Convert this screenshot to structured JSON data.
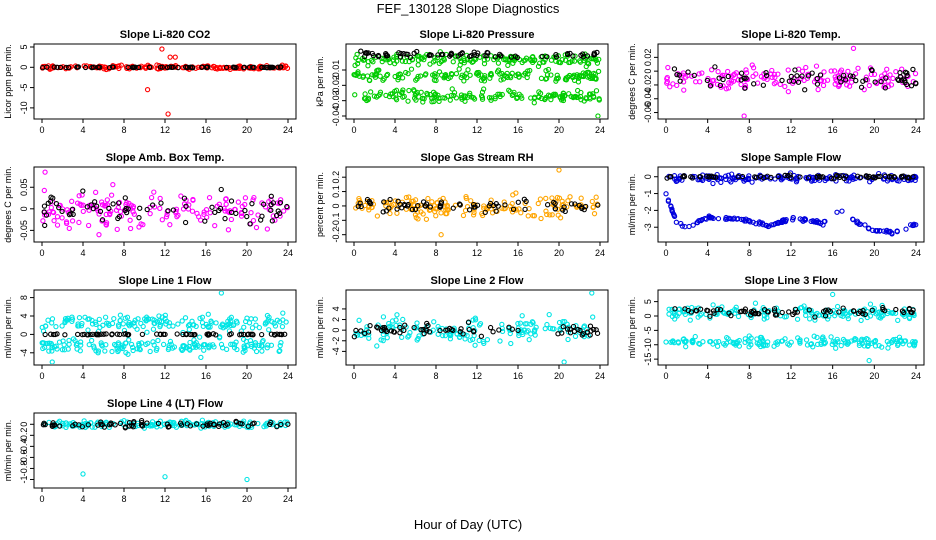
{
  "page": {
    "title": "FEF_130128  Slope Diagnostics",
    "xlabel": "Hour of Day (UTC)"
  },
  "colors": {
    "reference_series": "#000000",
    "axis": "#000000"
  },
  "chart_data": [
    {
      "type": "scatter",
      "title": "Slope Li-820 CO2",
      "ylabel": "Licor ppm per min.",
      "xlim": [
        0,
        24
      ],
      "xticks": [
        0,
        4,
        8,
        12,
        16,
        20,
        24
      ],
      "ylim": [
        -12,
        5
      ],
      "yticks": [
        -10,
        -5,
        0,
        5
      ],
      "color": "#ff0000",
      "series": [
        {
          "name": "all",
          "bands": [
            {
              "center": 0.0,
              "spread": 0.5
            }
          ],
          "outliers": [
            [
              10.3,
              -5.5
            ],
            [
              11.7,
              4.5
            ],
            [
              12.3,
              -11.5
            ],
            [
              12.5,
              2.5
            ],
            [
              13.0,
              2.5
            ]
          ]
        },
        {
          "name": "selected",
          "bands": [
            {
              "center": 0.0,
              "spread": 0.1
            }
          ]
        }
      ]
    },
    {
      "type": "scatter",
      "title": "Slope Li-820 Pressure",
      "ylabel": "kPa per min.",
      "xlim": [
        0,
        24
      ],
      "xticks": [
        0,
        4,
        8,
        12,
        16,
        20,
        24
      ],
      "ylim": [
        -0.04,
        0.005
      ],
      "yticks": [
        -0.04,
        -0.03,
        -0.02,
        -0.01
      ],
      "color": "#00cc00",
      "series": [
        {
          "name": "all",
          "bands": [
            {
              "center": -0.003,
              "spread": 0.004
            },
            {
              "center": -0.014,
              "spread": 0.004
            },
            {
              "center": -0.027,
              "spread": 0.004
            }
          ],
          "outliers": [
            [
              23.8,
              -0.04
            ]
          ]
        },
        {
          "name": "selected",
          "bands": [
            {
              "center": 0.0,
              "spread": 0.002
            }
          ]
        }
      ]
    },
    {
      "type": "scatter",
      "title": "Slope Li-820 Temp.",
      "ylabel": "degrees C per min.",
      "xlim": [
        0,
        24
      ],
      "xticks": [
        0,
        4,
        8,
        12,
        16,
        20,
        24
      ],
      "ylim": [
        -0.065,
        0.035
      ],
      "yticks": [
        -0.06,
        -0.04,
        -0.02,
        0.0,
        0.02
      ],
      "color": "#ff00ff",
      "series": [
        {
          "name": "all",
          "bands": [
            {
              "center": -0.01,
              "spread": 0.018
            }
          ],
          "outliers": [
            [
              7.5,
              -0.065
            ],
            [
              18.0,
              0.033
            ]
          ]
        },
        {
          "name": "selected",
          "bands": [
            {
              "center": -0.01,
              "spread": 0.018
            }
          ]
        }
      ]
    },
    {
      "type": "scatter",
      "title": "Slope Amb. Box Temp.",
      "ylabel": "degrees C per min.",
      "xlim": [
        0,
        24
      ],
      "xticks": [
        0,
        4,
        8,
        12,
        16,
        20,
        24
      ],
      "ylim": [
        -0.07,
        0.09
      ],
      "yticks": [
        -0.05,
        0.0,
        0.05
      ],
      "color": "#ff00ff",
      "series": [
        {
          "name": "all",
          "bands": [
            {
              "center": -0.005,
              "spread": 0.045
            }
          ],
          "outliers": [
            [
              0.3,
              0.085
            ]
          ]
        },
        {
          "name": "selected",
          "bands": [
            {
              "center": 0.0,
              "spread": 0.035
            }
          ]
        }
      ]
    },
    {
      "type": "scatter",
      "title": "Slope Gas Stream RH",
      "ylabel": "percent per min.",
      "xlim": [
        0,
        24
      ],
      "xticks": [
        0,
        4,
        8,
        12,
        16,
        20,
        24
      ],
      "ylim": [
        -0.23,
        0.25
      ],
      "yticks": [
        -0.2,
        -0.1,
        0.0,
        0.1,
        0.2
      ],
      "color": "#ffa500",
      "series": [
        {
          "name": "all",
          "bands": [
            {
              "center": 0.0,
              "spread": 0.08
            }
          ],
          "outliers": [
            [
              20.0,
              0.25
            ],
            [
              8.5,
              -0.2
            ]
          ]
        },
        {
          "name": "selected",
          "bands": [
            {
              "center": 0.0,
              "spread": 0.05
            }
          ]
        }
      ]
    },
    {
      "type": "scatter",
      "title": "Slope Sample Flow",
      "ylabel": "ml/min per min.",
      "xlim": [
        0,
        24
      ],
      "xticks": [
        0,
        4,
        8,
        12,
        16,
        20,
        24
      ],
      "ylim": [
        -3.7,
        0.4
      ],
      "yticks": [
        -3,
        -2,
        -1,
        0
      ],
      "color": "#0000dd",
      "series": [
        {
          "name": "all",
          "bands": [
            {
              "center": -0.1,
              "spread": 0.25
            }
          ],
          "curve": [
            [
              0,
              -1.0
            ],
            [
              1,
              -2.7
            ],
            [
              2,
              -3.0
            ],
            [
              4,
              -2.4
            ],
            [
              6,
              -2.5
            ],
            [
              8,
              -2.6
            ],
            [
              10,
              -2.9
            ],
            [
              12,
              -2.5
            ],
            [
              14,
              -2.6
            ],
            [
              15,
              -2.8
            ],
            [
              17,
              -2.0
            ],
            [
              18,
              -2.6
            ],
            [
              20,
              -3.2
            ],
            [
              22,
              -3.3
            ],
            [
              24,
              -2.8
            ]
          ]
        },
        {
          "name": "selected",
          "bands": [
            {
              "center": 0.0,
              "spread": 0.1
            }
          ]
        }
      ]
    },
    {
      "type": "scatter",
      "title": "Slope Line 1 Flow",
      "ylabel": "ml/min per min.",
      "xlim": [
        0,
        24
      ],
      "xticks": [
        0,
        4,
        8,
        12,
        16,
        20,
        24
      ],
      "ylim": [
        -6,
        9
      ],
      "yticks": [
        -4,
        0,
        4,
        8
      ],
      "color": "#00e5e5",
      "series": [
        {
          "name": "all",
          "bands": [
            {
              "center": 2.5,
              "spread": 2.0
            },
            {
              "center": -2.5,
              "spread": 1.5
            }
          ],
          "outliers": [
            [
              17.5,
              9.0
            ],
            [
              15.5,
              -5.0
            ],
            [
              1.0,
              -6.0
            ]
          ]
        },
        {
          "name": "selected",
          "bands": [
            {
              "center": 0.0,
              "spread": 0.15
            }
          ]
        }
      ]
    },
    {
      "type": "scatter",
      "title": "Slope Line 2 Flow",
      "ylabel": "ml/min per min.",
      "xlim": [
        0,
        24
      ],
      "xticks": [
        0,
        4,
        8,
        12,
        16,
        20,
        24
      ],
      "ylim": [
        -6,
        7
      ],
      "yticks": [
        -4,
        -2,
        0,
        2,
        4
      ],
      "color": "#00e5e5",
      "series": [
        {
          "name": "all",
          "bands": [
            {
              "center": 0.0,
              "spread": 2.8
            }
          ],
          "outliers": [
            [
              23.2,
              7.0
            ],
            [
              20.5,
              -6.0
            ]
          ]
        },
        {
          "name": "selected",
          "bands": [
            {
              "center": 0.0,
              "spread": 1.3
            }
          ]
        }
      ]
    },
    {
      "type": "scatter",
      "title": "Slope Line 3 Flow",
      "ylabel": "ml/min per min.",
      "xlim": [
        0,
        24
      ],
      "xticks": [
        0,
        4,
        8,
        12,
        16,
        20,
        24
      ],
      "ylim": [
        -16,
        8
      ],
      "yticks": [
        -15,
        -10,
        -5,
        0,
        5
      ],
      "color": "#00e5e5",
      "series": [
        {
          "name": "all",
          "bands": [
            {
              "center": 1.0,
              "spread": 2.5
            },
            {
              "center": -9.0,
              "spread": 2.0
            }
          ],
          "outliers": [
            [
              16.0,
              7.5
            ],
            [
              19.5,
              -15.5
            ]
          ]
        },
        {
          "name": "selected",
          "bands": [
            {
              "center": 1.5,
              "spread": 1.5
            }
          ]
        }
      ]
    },
    {
      "type": "scatter",
      "title": "Slope Line 4 (LT) Flow",
      "ylabel": "ml/min per min.",
      "xlim": [
        0,
        24
      ],
      "xticks": [
        0,
        4,
        8,
        12,
        16,
        20,
        24
      ],
      "ylim": [
        -1.1,
        0.15
      ],
      "yticks": [
        -1.0,
        -0.8,
        -0.6,
        -0.4,
        -0.2,
        0.0
      ],
      "color": "#00e5e5",
      "series": [
        {
          "name": "all",
          "bands": [
            {
              "center": 0.0,
              "spread": 0.07
            }
          ],
          "outliers": [
            [
              4.0,
              -0.9
            ],
            [
              12.0,
              -0.95
            ],
            [
              20.0,
              -1.0
            ]
          ]
        },
        {
          "name": "selected",
          "bands": [
            {
              "center": 0.0,
              "spread": 0.06
            }
          ]
        }
      ]
    }
  ]
}
